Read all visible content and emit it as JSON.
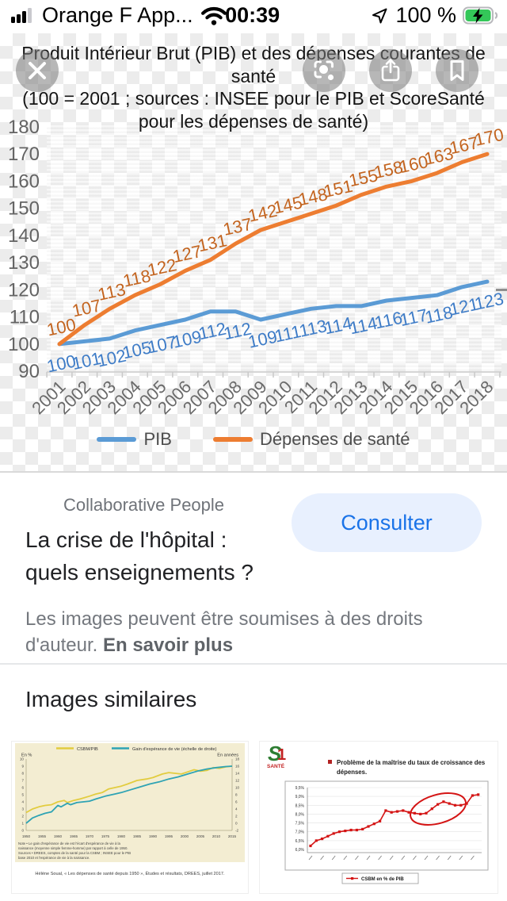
{
  "status_bar": {
    "carrier": "Orange F App...",
    "time": "00:39",
    "battery_percent": "100 %"
  },
  "viewer": {
    "icons": [
      "close-icon",
      "lens-icon",
      "share-icon",
      "bookmark-icon"
    ]
  },
  "chart_data": [
    {
      "type": "line",
      "title": "Produit Intérieur Brut (PIB) et des dépenses courantes de santé",
      "subtitle": "(100 = 2001 ; sources : INSEE pour le PIB et ScoreSanté pour les dépenses de santé)",
      "categories": [
        "2001",
        "2002",
        "2003",
        "2004",
        "2005",
        "2006",
        "2007",
        "2008",
        "2009",
        "2010",
        "2011",
        "2012",
        "2013",
        "2014",
        "2015",
        "2016",
        "2017",
        "2018"
      ],
      "series": [
        {
          "name": "PIB",
          "color": "#5B9BD5",
          "label_color": "#3E7CC7",
          "values": [
            100,
            101,
            102,
            105,
            107,
            109,
            112,
            112,
            109,
            111,
            113,
            114,
            114,
            116,
            117,
            118,
            121,
            123
          ]
        },
        {
          "name": "Dépenses de santé",
          "color": "#ED7D31",
          "label_color": "#C3641F",
          "values": [
            100,
            107,
            113,
            118,
            122,
            127,
            131,
            137,
            142,
            145,
            148,
            151,
            155,
            158,
            160,
            163,
            167,
            170
          ]
        }
      ],
      "ylim": [
        90,
        180
      ],
      "ytick_step": 10,
      "grid": false,
      "data_labels": true,
      "legend_position": "bottom"
    },
    {
      "type": "line",
      "left_axis_title": "En %",
      "right_axis_title": "En années",
      "left_ylim": [
        0,
        10
      ],
      "right_ylim": [
        -2,
        18
      ],
      "x_ticks": [
        "1950",
        "1955",
        "1960",
        "1965",
        "1970",
        "1975",
        "1980",
        "1985",
        "1990",
        "1995",
        "2000",
        "2005",
        "2010",
        "2015"
      ],
      "series": [
        {
          "name": "CSBM/PIB",
          "color": "#E2CC3F",
          "axis": "left",
          "points": [
            [
              1950,
              2.5
            ],
            [
              1952,
              3.0
            ],
            [
              1954,
              3.3
            ],
            [
              1956,
              3.5
            ],
            [
              1958,
              3.6
            ],
            [
              1960,
              4.0
            ],
            [
              1962,
              4.2
            ],
            [
              1963,
              3.9
            ],
            [
              1965,
              4.2
            ],
            [
              1967,
              4.4
            ],
            [
              1970,
              4.8
            ],
            [
              1972,
              5.1
            ],
            [
              1974,
              5.3
            ],
            [
              1976,
              5.8
            ],
            [
              1978,
              6.0
            ],
            [
              1980,
              6.2
            ],
            [
              1982,
              6.5
            ],
            [
              1985,
              7.0
            ],
            [
              1988,
              7.2
            ],
            [
              1990,
              7.4
            ],
            [
              1993,
              7.9
            ],
            [
              1995,
              8.1
            ],
            [
              1997,
              8.0
            ],
            [
              1999,
              7.9
            ],
            [
              2001,
              8.2
            ],
            [
              2003,
              8.5
            ],
            [
              2005,
              8.3
            ],
            [
              2007,
              8.4
            ],
            [
              2009,
              8.8
            ],
            [
              2011,
              8.7
            ],
            [
              2013,
              8.9
            ],
            [
              2015,
              9.0
            ]
          ]
        },
        {
          "name": "Gain d'espérance de vie (échelle de droite)",
          "color": "#2EA3B4",
          "axis": "right",
          "points": [
            [
              1950,
              0
            ],
            [
              1952,
              1.5
            ],
            [
              1954,
              2.2
            ],
            [
              1956,
              2.8
            ],
            [
              1958,
              3.2
            ],
            [
              1960,
              5.0
            ],
            [
              1961,
              4.6
            ],
            [
              1963,
              5.6
            ],
            [
              1964,
              5.2
            ],
            [
              1966,
              5.8
            ],
            [
              1968,
              6.0
            ],
            [
              1970,
              6.2
            ],
            [
              1972,
              6.8
            ],
            [
              1975,
              7.6
            ],
            [
              1978,
              8.2
            ],
            [
              1980,
              8.6
            ],
            [
              1983,
              9.4
            ],
            [
              1986,
              10.2
            ],
            [
              1989,
              11.0
            ],
            [
              1992,
              11.6
            ],
            [
              1995,
              12.4
            ],
            [
              1998,
              13.0
            ],
            [
              2001,
              13.8
            ],
            [
              2004,
              14.6
            ],
            [
              2007,
              15.2
            ],
            [
              2010,
              15.6
            ],
            [
              2013,
              15.9
            ],
            [
              2015,
              16.0
            ]
          ]
        }
      ],
      "note_line1": "Note • Le gain d'espérance de vie est l'écart d'espérance de vie à la naissance (moyenne simple femme-homme) par rapport à celle de 1950.",
      "note_line2": "Sources • DREES, comptes de la santé pour la CSBM ; INSEE pour le PIB base 2010 et l'espérance de vie à la naissance.",
      "caption": "Hélène Soual, « Les dépenses de santé depuis 1950 », Études et résultats, DREES, juillet 2017."
    },
    {
      "type": "line",
      "logo": "SANTÉ",
      "slide_title": "Problème de la maîtrise du taux de croissance des dépenses.",
      "y_ticks": [
        "9,5%",
        "9,0%",
        "8,5%",
        "8,0%",
        "7,5%",
        "7,0%",
        "6,5%",
        "6,0%"
      ],
      "ylim": [
        6.0,
        9.5
      ],
      "legend": "CSBM en % de PIB",
      "color": "#D41414",
      "values": [
        6.2,
        6.5,
        6.6,
        6.75,
        6.9,
        7.0,
        7.05,
        7.1,
        7.1,
        7.15,
        7.3,
        7.45,
        7.6,
        8.2,
        8.1,
        8.15,
        8.2,
        8.1,
        8.05,
        8.0,
        8.05,
        8.3,
        8.55,
        8.7,
        8.6,
        8.5,
        8.5,
        8.6,
        9.05,
        9.1
      ],
      "annotation": "ellipse"
    }
  ],
  "info": {
    "publisher": "Collaborative People",
    "consult_button": "Consulter",
    "title_line1": "La crise de l'hôpital :",
    "title_line2": "quels enseignements ?",
    "copyright_text": "Les images peuvent être soumises à des droits d'auteur.",
    "copyright_link": "En savoir plus"
  },
  "similar": {
    "heading": "Images similaires"
  }
}
